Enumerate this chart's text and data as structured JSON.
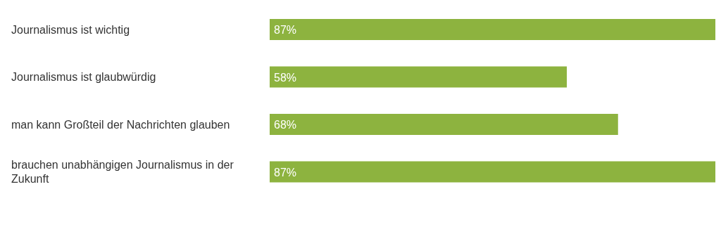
{
  "chart_data": {
    "type": "bar",
    "orientation": "horizontal",
    "categories": [
      "Journalismus ist wichtig",
      "Journalismus ist glaubwürdig",
      "man kann Großteil der Nachrichten glauben",
      "brauchen unabhängigen Journalismus in der Zukunft"
    ],
    "values": [
      87,
      58,
      68,
      87
    ],
    "value_labels": [
      "87%",
      "58%",
      "68%",
      "87%"
    ],
    "color": "#8db33f",
    "xlim": [
      0,
      87
    ],
    "tick_labels": "y",
    "grid": false,
    "legend": false
  }
}
